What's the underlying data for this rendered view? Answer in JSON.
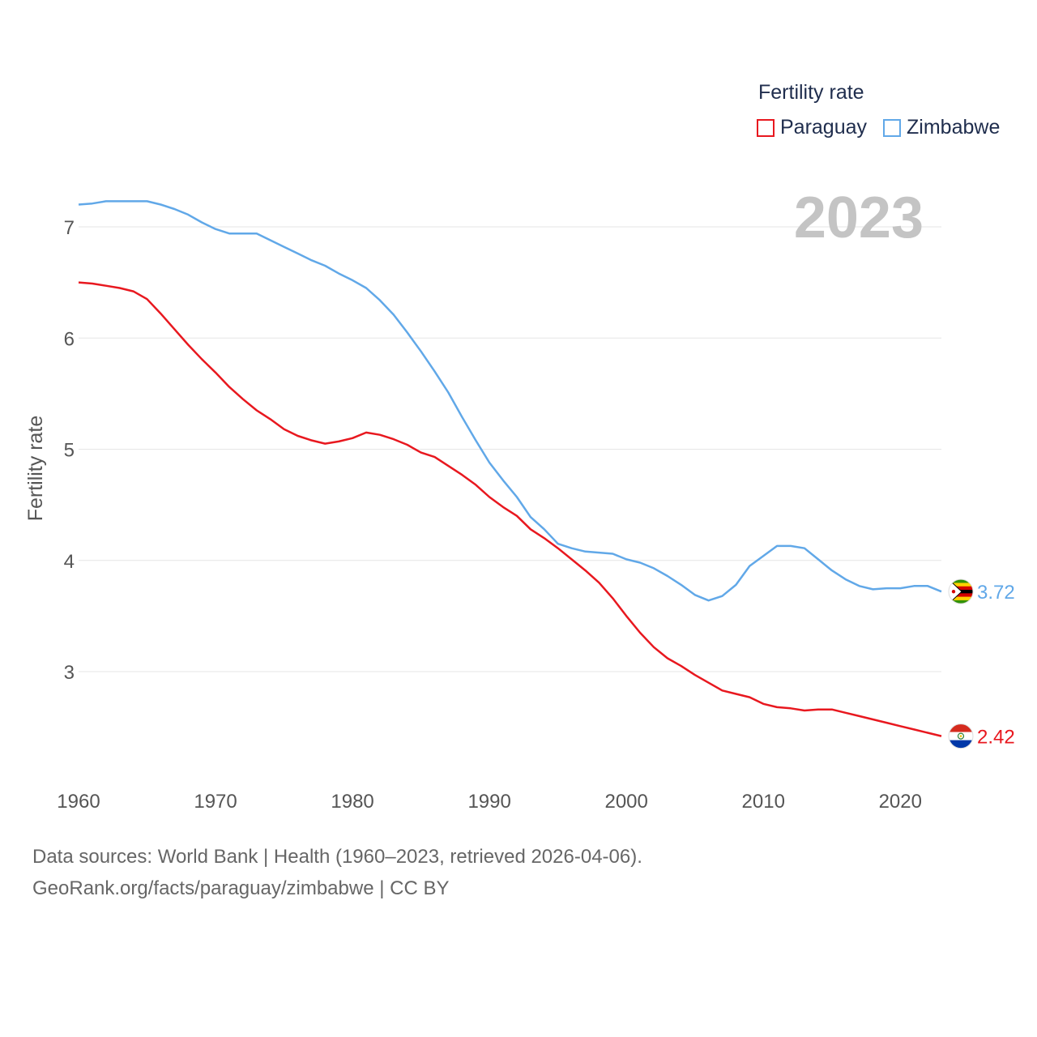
{
  "legend": {
    "title": "Fertility rate",
    "items": [
      {
        "name": "Paraguay",
        "color": "#e8181f"
      },
      {
        "name": "Zimbabwe",
        "color": "#61a8e8"
      }
    ]
  },
  "current_year": "2023",
  "footer": {
    "line1": "Data sources: World Bank | Health (1960–2023, retrieved 2026-04-06).",
    "line2": "GeoRank.org/facts/paraguay/zimbabwe | CC BY"
  },
  "chart_data": {
    "type": "line",
    "title": "Fertility rate",
    "xlabel": "",
    "ylabel": "Fertility rate",
    "xlim": [
      1960,
      2023
    ],
    "ylim": [
      2.2,
      7.5
    ],
    "x_ticks": [
      1960,
      1970,
      1980,
      1990,
      2000,
      2010,
      2020
    ],
    "y_ticks": [
      3,
      4,
      5,
      6,
      7
    ],
    "x": [
      1960,
      1961,
      1962,
      1963,
      1964,
      1965,
      1966,
      1967,
      1968,
      1969,
      1970,
      1971,
      1972,
      1973,
      1974,
      1975,
      1976,
      1977,
      1978,
      1979,
      1980,
      1981,
      1982,
      1983,
      1984,
      1985,
      1986,
      1987,
      1988,
      1989,
      1990,
      1991,
      1992,
      1993,
      1994,
      1995,
      1996,
      1997,
      1998,
      1999,
      2000,
      2001,
      2002,
      2003,
      2004,
      2005,
      2006,
      2007,
      2008,
      2009,
      2010,
      2011,
      2012,
      2013,
      2014,
      2015,
      2016,
      2017,
      2018,
      2019,
      2020,
      2021,
      2022,
      2023
    ],
    "series": [
      {
        "name": "Paraguay",
        "color": "#e8181f",
        "end_label": "2.42",
        "values": [
          6.5,
          6.49,
          6.47,
          6.45,
          6.42,
          6.35,
          6.22,
          6.08,
          5.94,
          5.81,
          5.69,
          5.56,
          5.45,
          5.35,
          5.27,
          5.18,
          5.12,
          5.08,
          5.05,
          5.07,
          5.1,
          5.15,
          5.13,
          5.09,
          5.04,
          4.97,
          4.93,
          4.85,
          4.77,
          4.68,
          4.57,
          4.48,
          4.4,
          4.28,
          4.2,
          4.11,
          4.01,
          3.91,
          3.8,
          3.66,
          3.5,
          3.35,
          3.22,
          3.12,
          3.05,
          2.97,
          2.9,
          2.83,
          2.8,
          2.77,
          2.71,
          2.68,
          2.67,
          2.65,
          2.66,
          2.66,
          2.63,
          2.6,
          2.57,
          2.54,
          2.51,
          2.48,
          2.45,
          2.42
        ]
      },
      {
        "name": "Zimbabwe",
        "color": "#61a8e8",
        "end_label": "3.72",
        "values": [
          7.2,
          7.21,
          7.23,
          7.23,
          7.23,
          7.23,
          7.2,
          7.16,
          7.11,
          7.04,
          6.98,
          6.94,
          6.94,
          6.94,
          6.88,
          6.82,
          6.76,
          6.7,
          6.65,
          6.58,
          6.52,
          6.45,
          6.34,
          6.21,
          6.05,
          5.88,
          5.7,
          5.51,
          5.29,
          5.08,
          4.88,
          4.72,
          4.57,
          4.39,
          4.28,
          4.15,
          4.11,
          4.08,
          4.07,
          4.06,
          4.01,
          3.98,
          3.93,
          3.86,
          3.78,
          3.69,
          3.64,
          3.68,
          3.78,
          3.95,
          4.04,
          4.13,
          4.13,
          4.11,
          4.01,
          3.91,
          3.83,
          3.77,
          3.74,
          3.75,
          3.75,
          3.77,
          3.77,
          3.72
        ]
      }
    ]
  }
}
